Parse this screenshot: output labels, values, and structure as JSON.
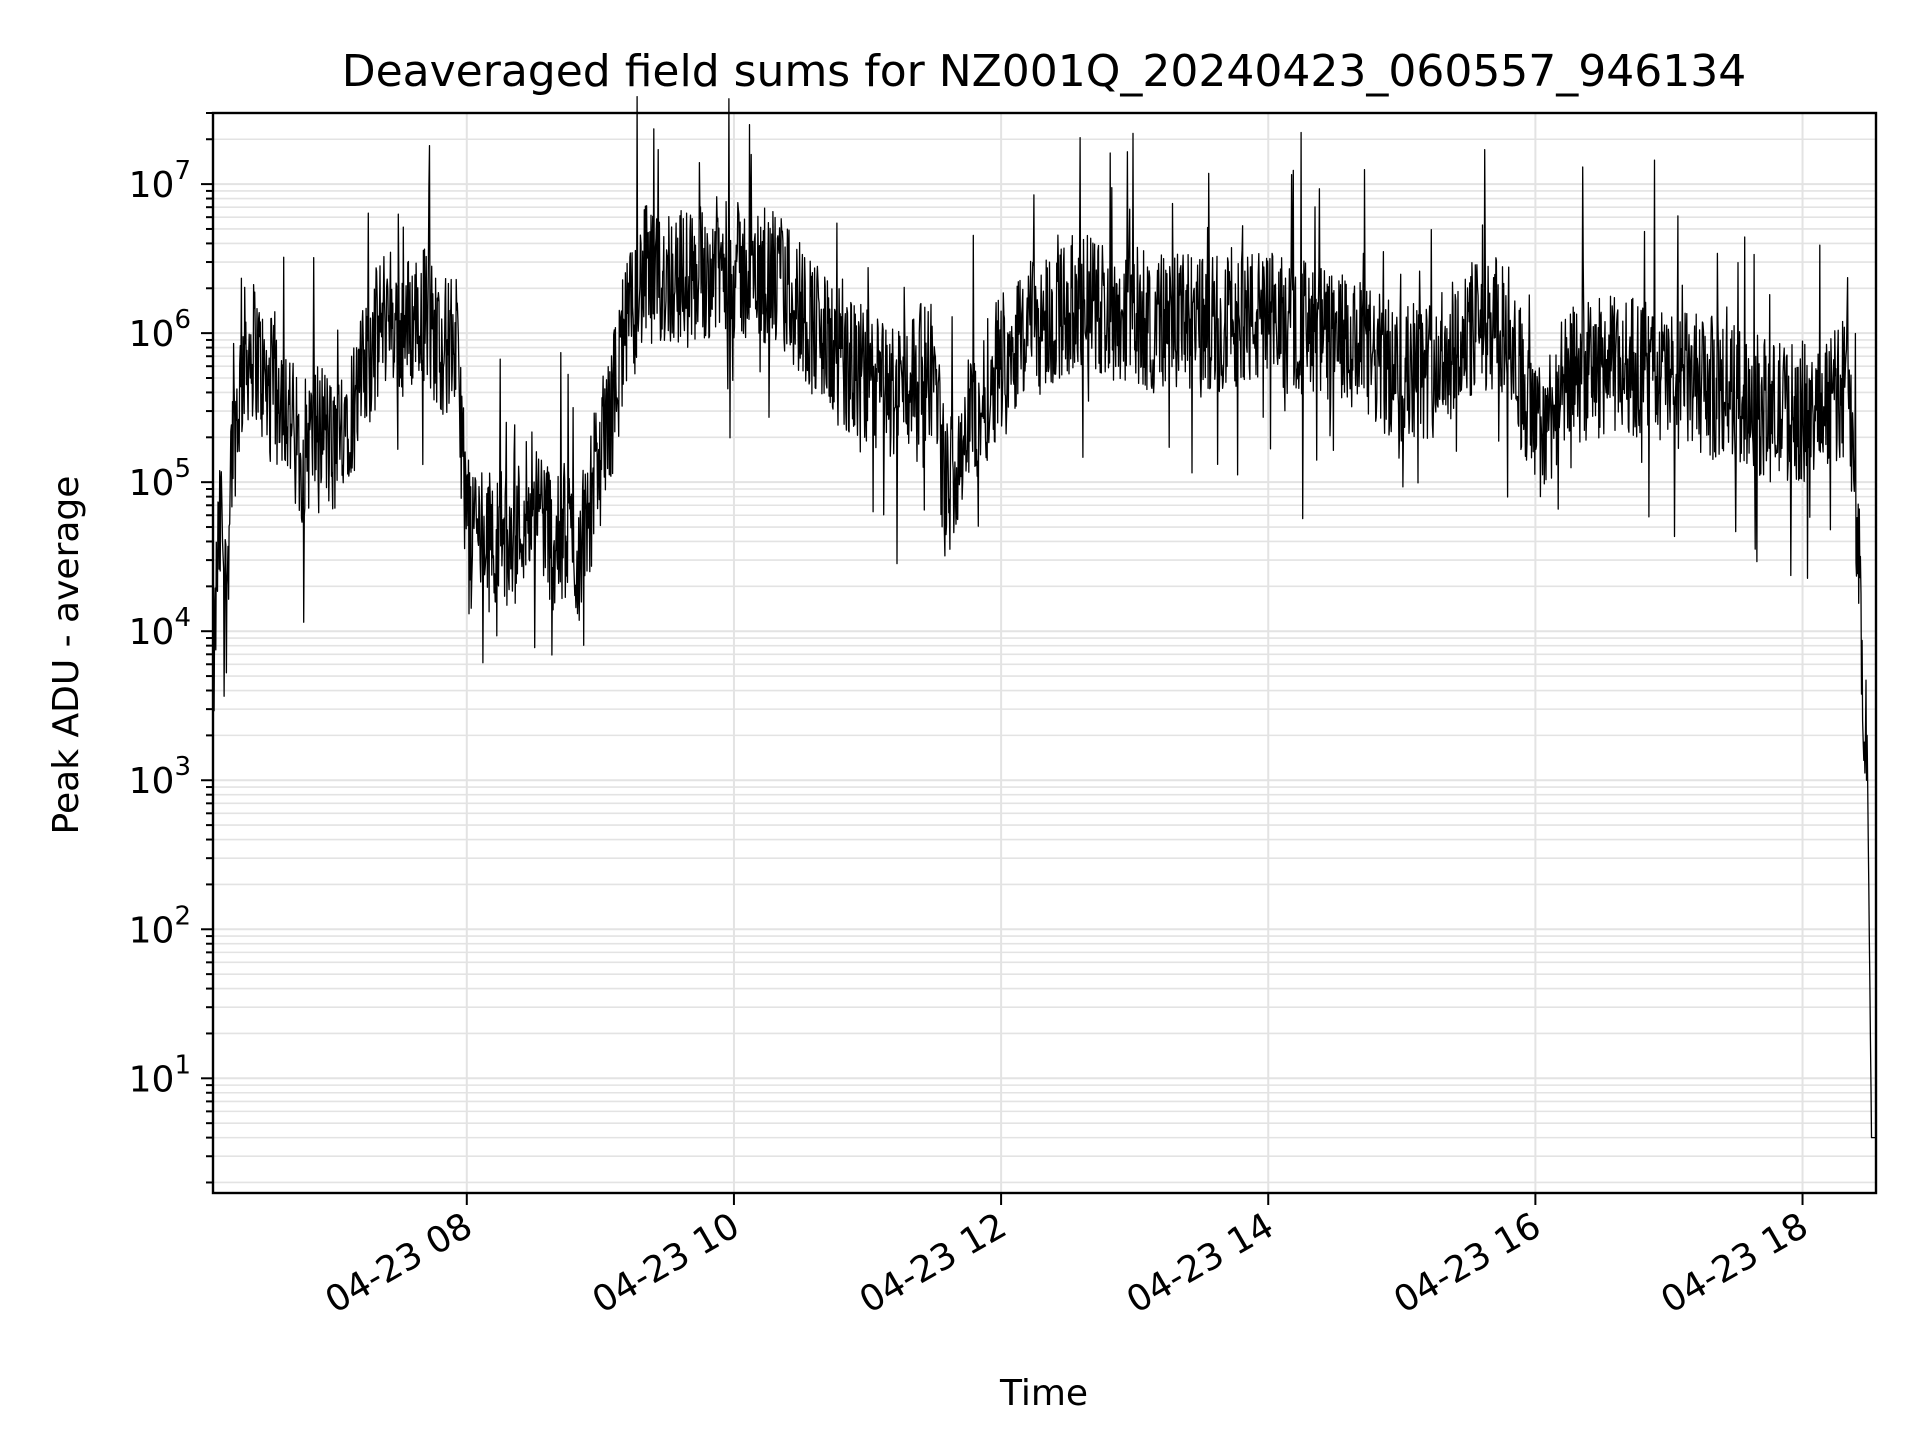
{
  "chart_data": {
    "type": "line",
    "title": "Deaveraged field sums for NZ001Q_20240423_060557_946134",
    "xlabel": "Time",
    "ylabel": "Peak ADU - average",
    "yscale": "log",
    "ylim": [
      1.7,
      30000000
    ],
    "xlim": [
      "2024-04-23 06:06",
      "2024-04-23 18:33"
    ],
    "grid": "on (major and minor, both axes)",
    "x_ticks": [
      {
        "value": "2024-04-23 08:00",
        "label": "04-23 08"
      },
      {
        "value": "2024-04-23 10:00",
        "label": "04-23 10"
      },
      {
        "value": "2024-04-23 12:00",
        "label": "04-23 12"
      },
      {
        "value": "2024-04-23 14:00",
        "label": "04-23 14"
      },
      {
        "value": "2024-04-23 16:00",
        "label": "04-23 16"
      },
      {
        "value": "2024-04-23 18:00",
        "label": "04-23 18"
      }
    ],
    "y_ticks": [
      {
        "value": 10,
        "base": "10",
        "exp": "1"
      },
      {
        "value": 100,
        "base": "10",
        "exp": "2"
      },
      {
        "value": 1000,
        "base": "10",
        "exp": "3"
      },
      {
        "value": 10000,
        "base": "10",
        "exp": "4"
      },
      {
        "value": 100000,
        "base": "10",
        "exp": "5"
      },
      {
        "value": 1000000,
        "base": "10",
        "exp": "6"
      },
      {
        "value": 10000000,
        "base": "10",
        "exp": "7"
      }
    ],
    "line_color": "#000000",
    "series": [
      {
        "x": [
          "2024-04-23 06:06",
          "2024-04-23 06:08",
          "2024-04-23 06:10",
          "2024-04-23 06:12",
          "2024-04-23 06:14",
          "2024-04-23 06:17",
          "2024-04-23 06:20",
          "2024-04-23 06:25",
          "2024-04-23 06:30",
          "2024-04-23 06:35",
          "2024-04-23 06:40",
          "2024-04-23 06:45",
          "2024-04-23 06:50",
          "2024-04-23 06:55",
          "2024-04-23 07:00",
          "2024-04-23 07:05",
          "2024-04-23 07:10",
          "2024-04-23 07:15",
          "2024-04-23 07:20",
          "2024-04-23 07:25",
          "2024-04-23 07:30",
          "2024-04-23 07:35",
          "2024-04-23 07:40",
          "2024-04-23 07:45",
          "2024-04-23 07:50",
          "2024-04-23 07:55",
          "2024-04-23 08:00",
          "2024-04-23 08:05",
          "2024-04-23 08:10",
          "2024-04-23 08:15",
          "2024-04-23 08:20",
          "2024-04-23 08:25",
          "2024-04-23 08:30",
          "2024-04-23 08:35",
          "2024-04-23 08:40",
          "2024-04-23 08:45",
          "2024-04-23 08:50",
          "2024-04-23 08:55",
          "2024-04-23 09:00",
          "2024-04-23 09:05",
          "2024-04-23 09:10",
          "2024-04-23 09:15",
          "2024-04-23 09:20",
          "2024-04-23 09:25",
          "2024-04-23 09:30",
          "2024-04-23 09:40",
          "2024-04-23 09:50",
          "2024-04-23 10:00",
          "2024-04-23 10:10",
          "2024-04-23 10:20",
          "2024-04-23 10:30",
          "2024-04-23 10:40",
          "2024-04-23 10:50",
          "2024-04-23 11:00",
          "2024-04-23 11:10",
          "2024-04-23 11:20",
          "2024-04-23 11:30",
          "2024-04-23 11:35",
          "2024-04-23 11:40",
          "2024-04-23 11:45",
          "2024-04-23 11:50",
          "2024-04-23 12:00",
          "2024-04-23 12:10",
          "2024-04-23 12:20",
          "2024-04-23 12:30",
          "2024-04-23 12:40",
          "2024-04-23 12:50",
          "2024-04-23 13:00",
          "2024-04-23 13:15",
          "2024-04-23 13:30",
          "2024-04-23 13:45",
          "2024-04-23 14:00",
          "2024-04-23 14:15",
          "2024-04-23 14:30",
          "2024-04-23 14:45",
          "2024-04-23 15:00",
          "2024-04-23 15:15",
          "2024-04-23 15:30",
          "2024-04-23 15:40",
          "2024-04-23 15:50",
          "2024-04-23 16:00",
          "2024-04-23 16:15",
          "2024-04-23 16:30",
          "2024-04-23 16:45",
          "2024-04-23 17:00",
          "2024-04-23 17:15",
          "2024-04-23 17:30",
          "2024-04-23 17:45",
          "2024-04-23 18:00",
          "2024-04-23 18:05",
          "2024-04-23 18:10",
          "2024-04-23 18:15",
          "2024-04-23 18:20",
          "2024-04-23 18:23",
          "2024-04-23 18:25",
          "2024-04-23 18:27",
          "2024-04-23 18:29",
          "2024-04-23 18:31",
          "2024-04-23 18:33"
        ],
        "y": [
          3500,
          30000,
          60000,
          15000,
          150000,
          300000,
          700000,
          800000,
          400000,
          500000,
          300000,
          150000,
          200000,
          250000,
          150000,
          300000,
          350000,
          600000,
          1000000,
          1500000,
          1000000,
          1200000,
          1500000,
          1000000,
          800000,
          900000,
          60000,
          50000,
          40000,
          45000,
          35000,
          60000,
          100000,
          60000,
          35000,
          50000,
          30000,
          70000,
          150000,
          300000,
          800000,
          1500000,
          2500000,
          2000000,
          2500000,
          2300000,
          2800000,
          2600000,
          2400000,
          2200000,
          1500000,
          900000,
          600000,
          500000,
          400000,
          500000,
          600000,
          80000,
          150000,
          250000,
          300000,
          700000,
          1000000,
          1200000,
          1500000,
          1600000,
          1400000,
          1300000,
          1200000,
          1100000,
          1300000,
          1200000,
          1100000,
          900000,
          700000,
          500000,
          600000,
          1000000,
          1200000,
          900000,
          200000,
          500000,
          600000,
          600000,
          500000,
          450000,
          400000,
          300000,
          300000,
          250000,
          400000,
          350000,
          600000,
          100000,
          40000,
          5000,
          2000,
          4,
          4
        ]
      }
    ]
  }
}
